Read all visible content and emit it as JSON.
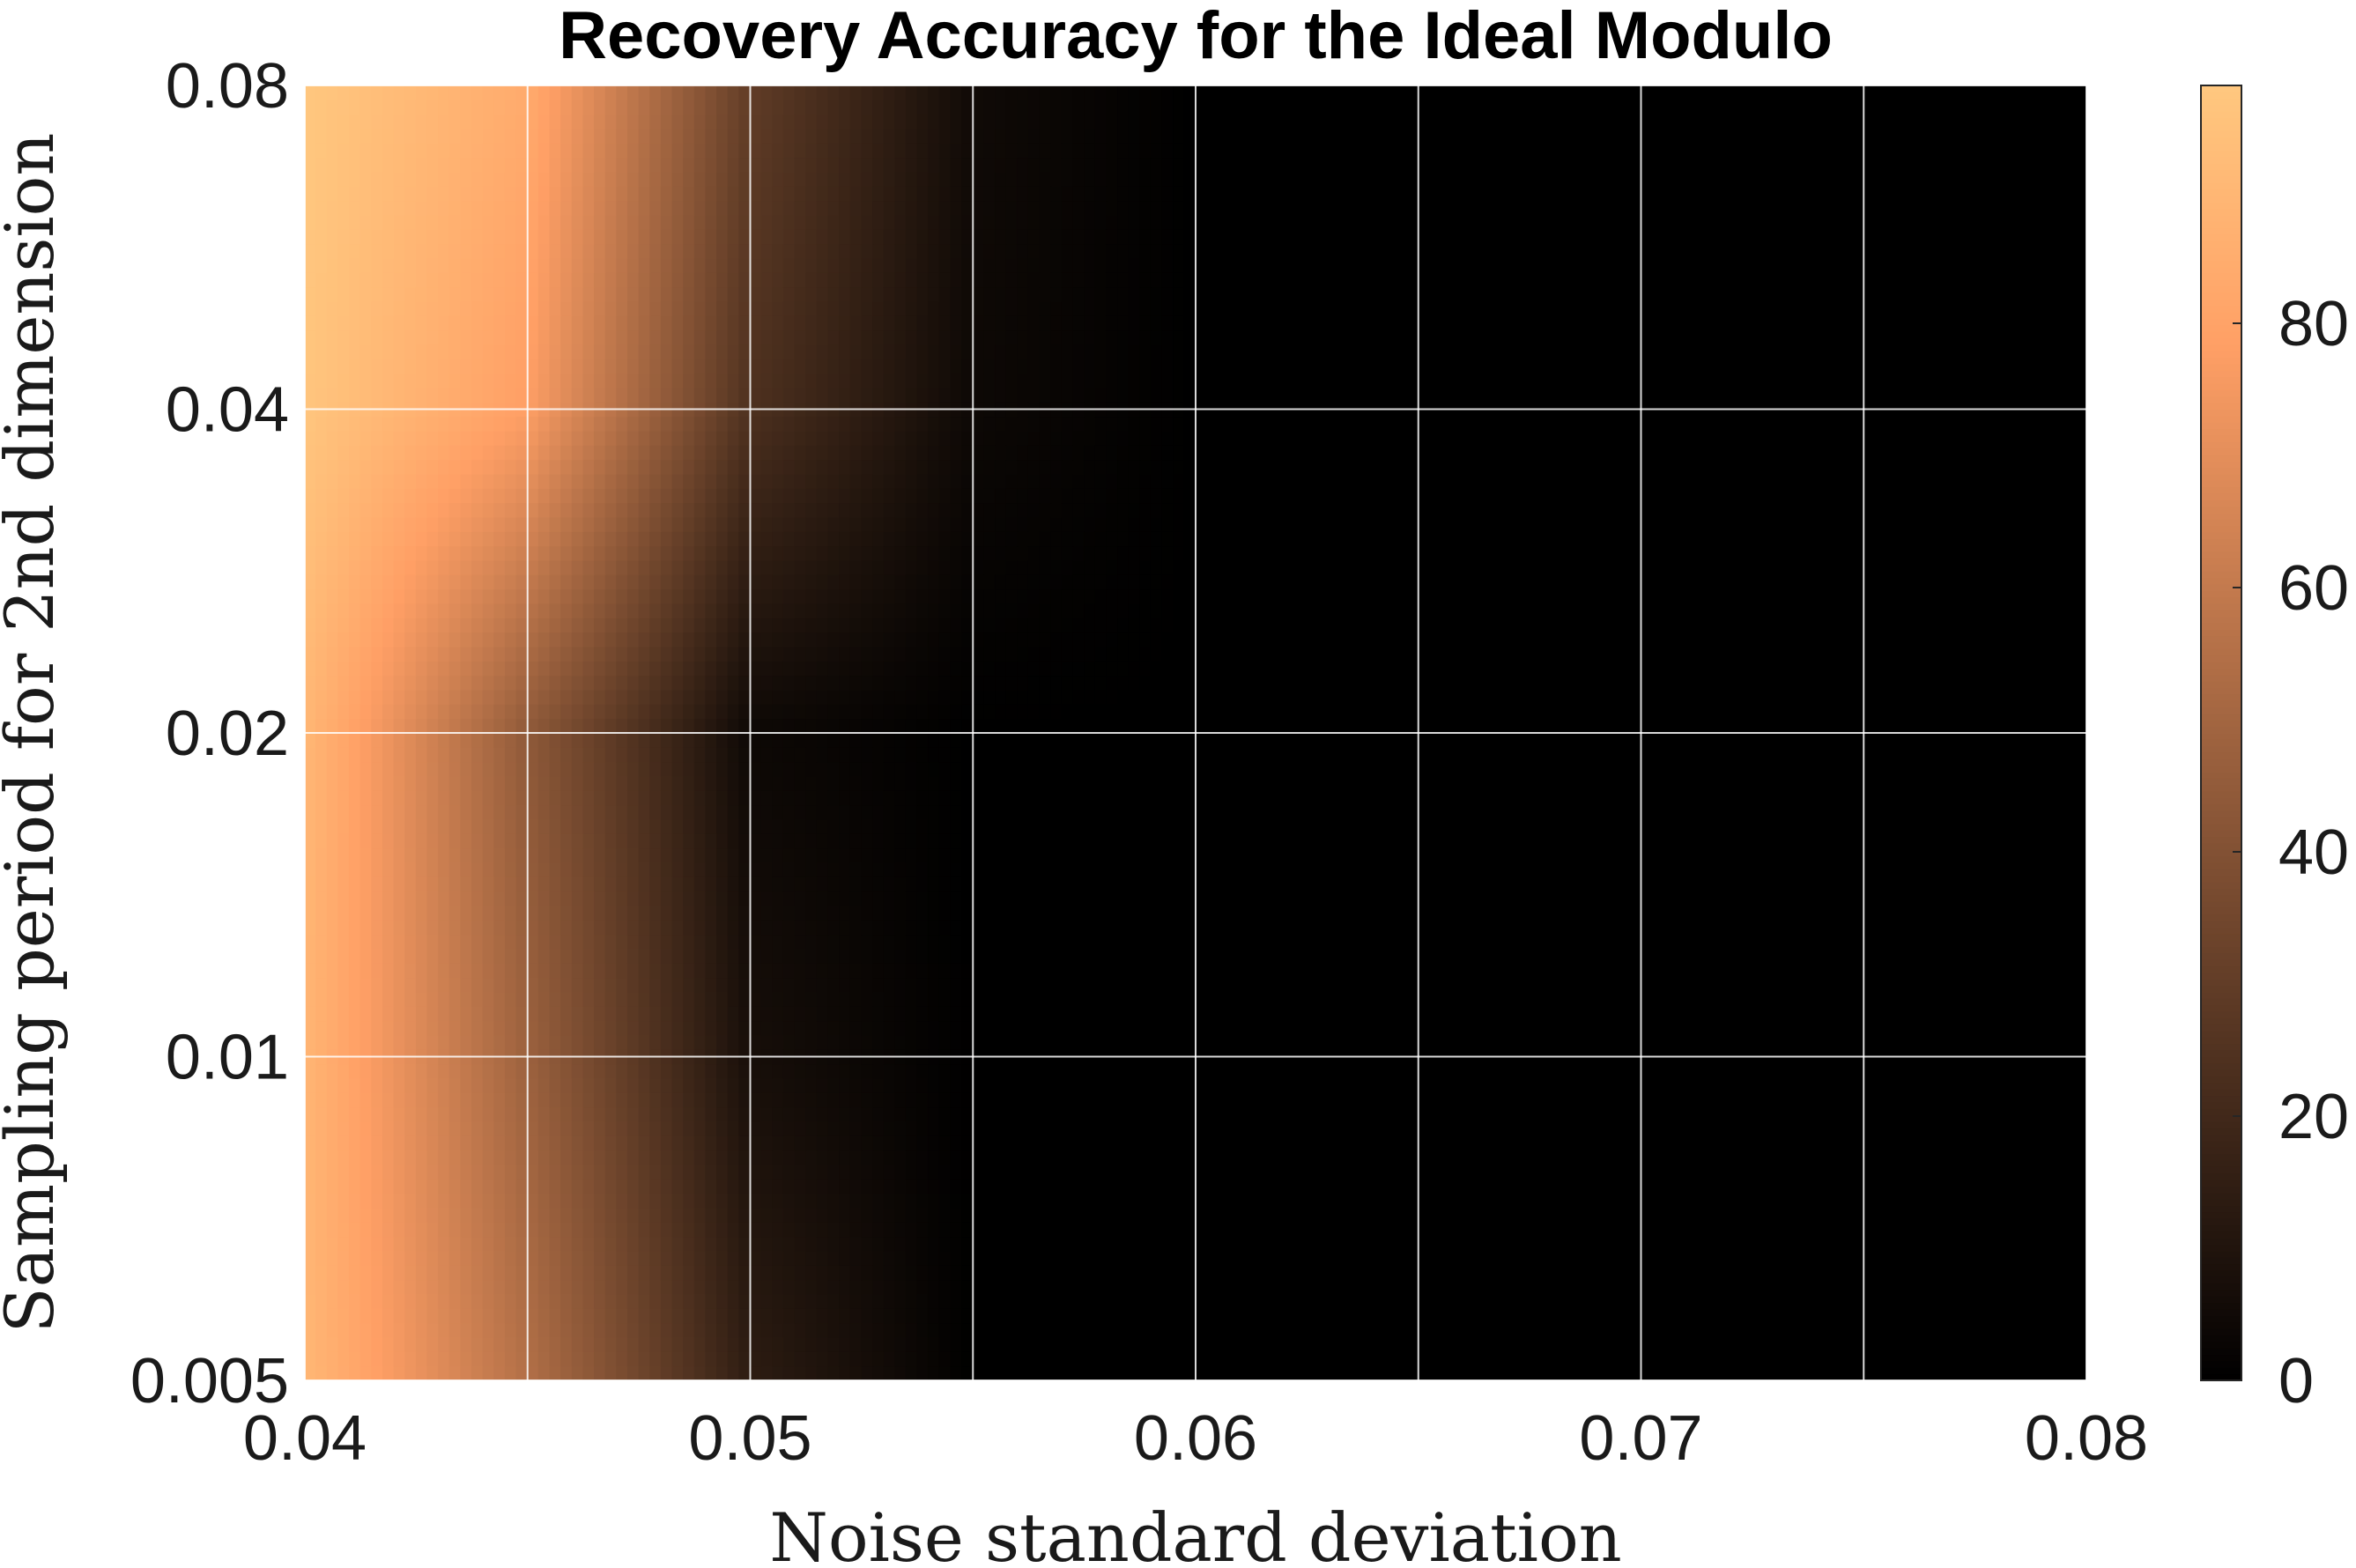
{
  "chart_data": {
    "type": "heatmap",
    "title": "Recovery Accuracy for the Ideal Modulo",
    "xlabel": "Noise standard deviation",
    "ylabel": "Sampling period for 2nd dimension",
    "x_ticks": [
      "0.04",
      "0.05",
      "0.06",
      "0.07",
      "0.08"
    ],
    "y_ticks": [
      "0.08",
      "0.04",
      "0.02",
      "0.01",
      "0.005"
    ],
    "x_grid": [
      0.04,
      0.045,
      0.05,
      0.055,
      0.06,
      0.065,
      0.07,
      0.075,
      0.08
    ],
    "y_grid": [
      0.005,
      0.01,
      0.02,
      0.04,
      0.08
    ],
    "xlim": [
      0.04,
      0.08
    ],
    "ylim": [
      0.005,
      0.08
    ],
    "y_scale": "log2",
    "grid": true,
    "colormap": "copper",
    "colorbar": {
      "ticks": [
        "0",
        "20",
        "40",
        "60",
        "80"
      ],
      "min": 0,
      "max": 98
    },
    "values": [
      [
        90,
        55,
        14,
        0,
        0,
        0,
        0,
        0,
        0
      ],
      [
        89,
        48,
        7,
        0,
        0,
        0,
        0,
        0,
        0
      ],
      [
        90,
        44,
        4,
        0,
        0,
        0,
        0,
        0,
        0
      ],
      [
        97,
        78,
        24,
        4,
        0,
        0,
        0,
        0,
        0
      ],
      [
        98,
        84,
        30,
        5,
        0,
        0,
        0,
        0,
        0
      ]
    ]
  }
}
